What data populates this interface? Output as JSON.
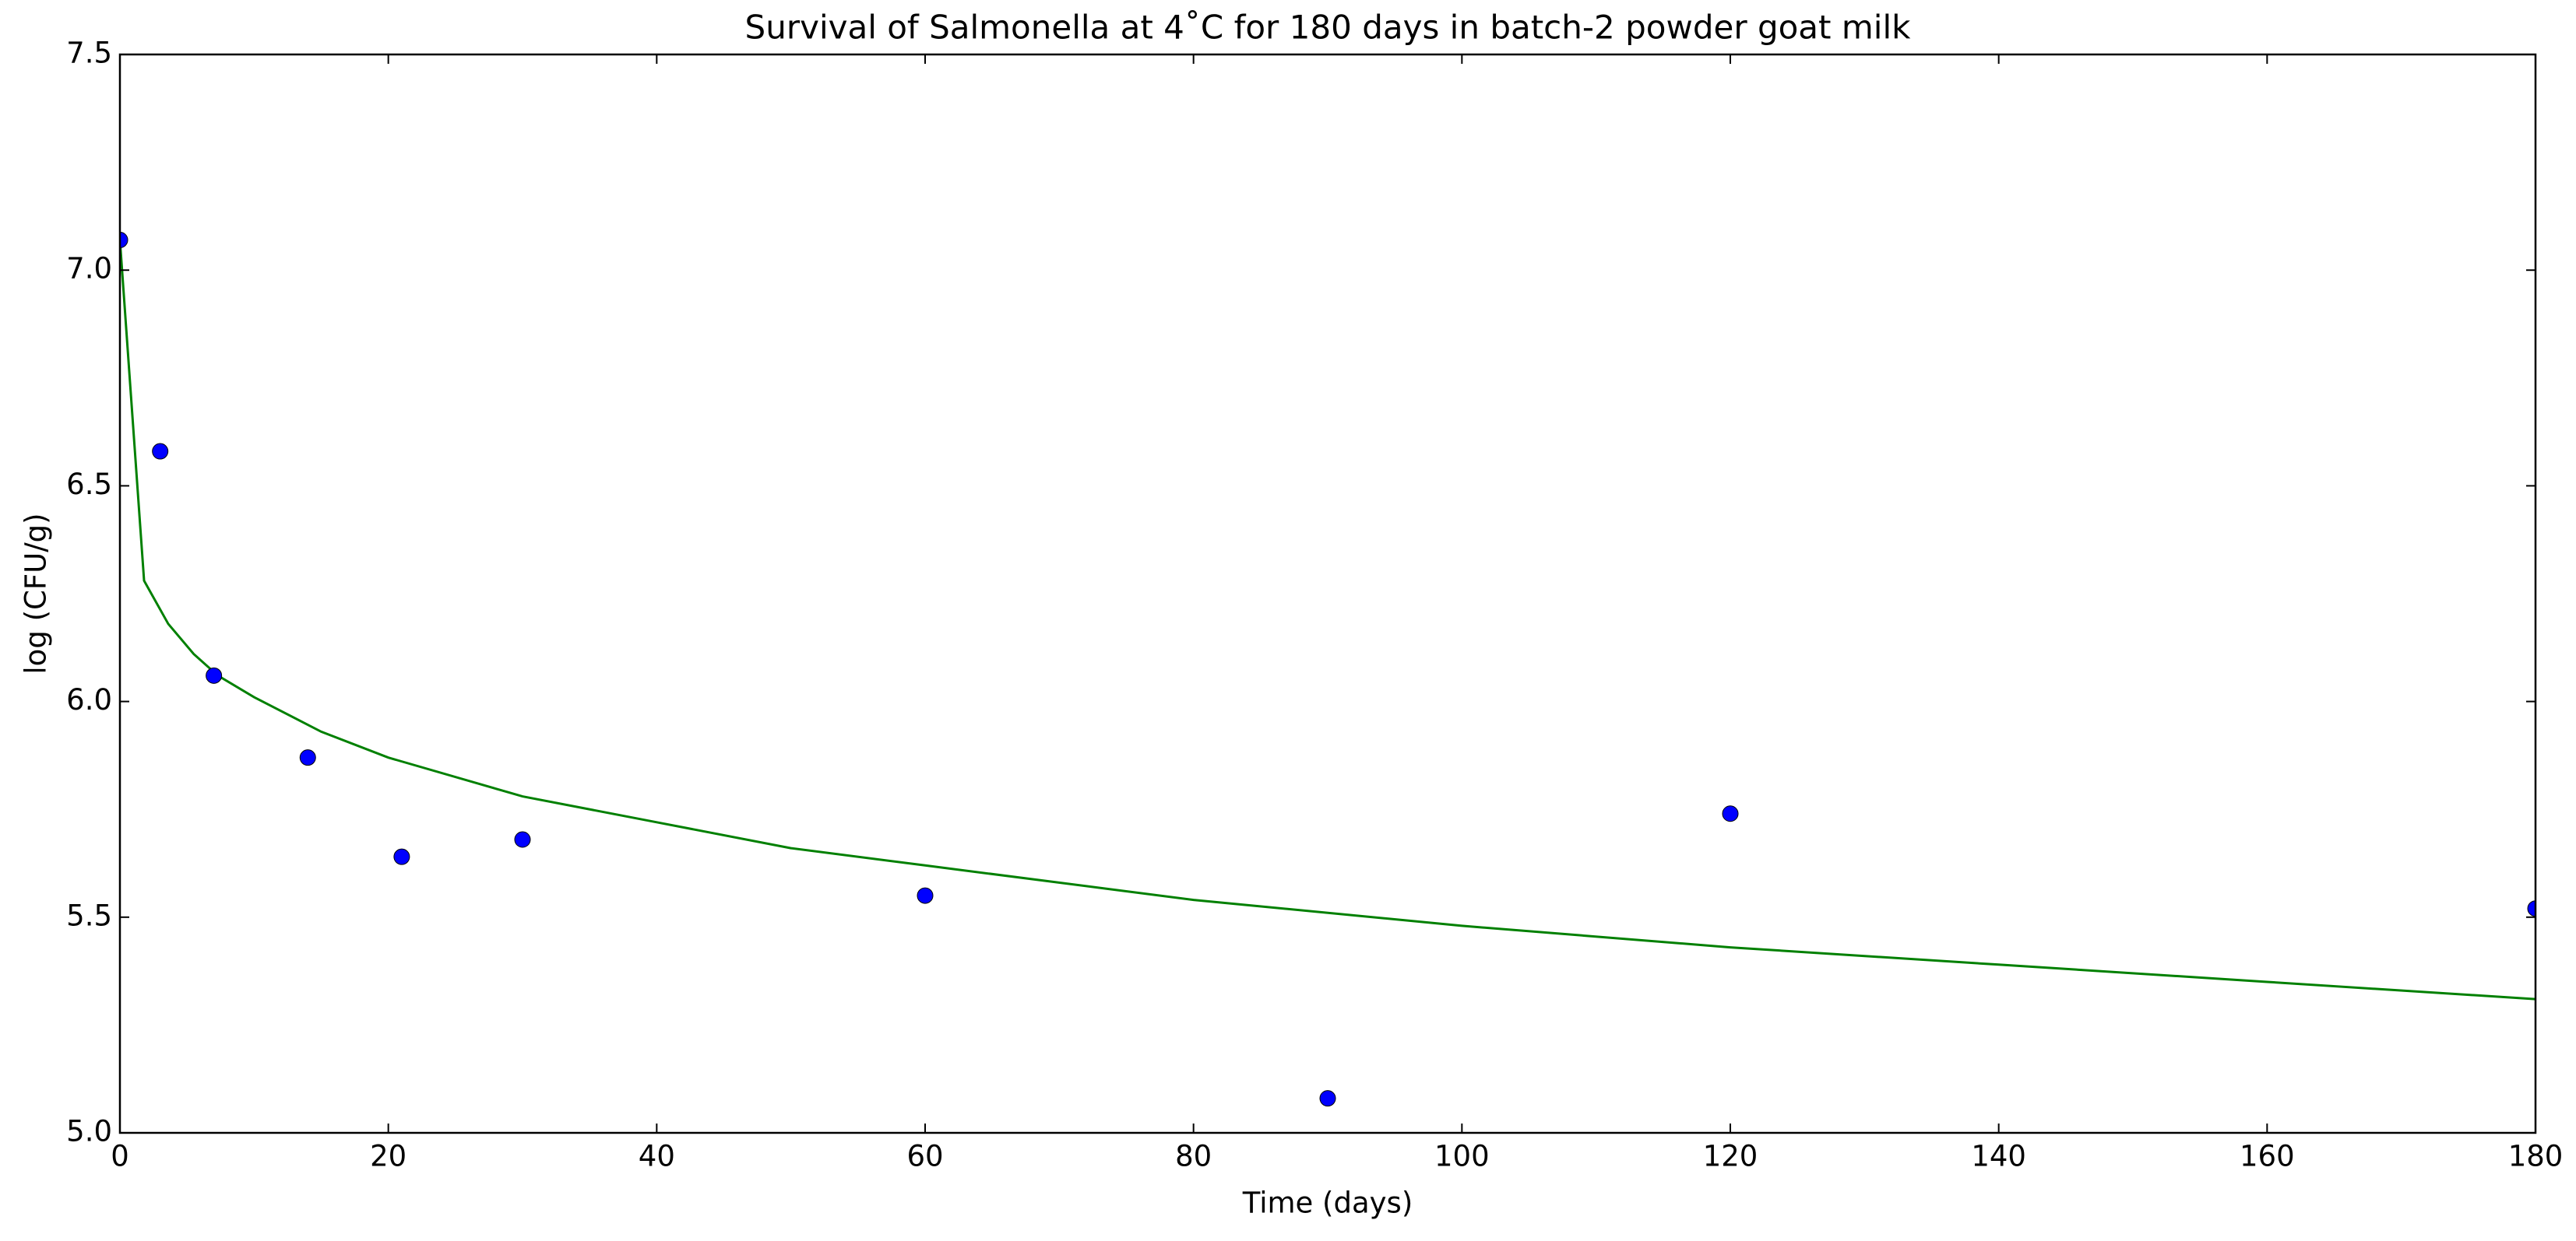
{
  "chart_data": {
    "type": "scatter",
    "title": "Survival of Salmonella at 4˚C  for 180 days in batch-2 powder goat milk",
    "xlabel": "Time (days)",
    "ylabel": "log (CFU/g)",
    "xlim": [
      0,
      180
    ],
    "xticks": [
      0,
      20,
      40,
      60,
      80,
      100,
      120,
      140,
      160,
      180
    ],
    "ylim": [
      5,
      7.5
    ],
    "yticks": [
      {
        "value": 5,
        "label": "5.0"
      },
      5.5,
      {
        "value": 6,
        "label": "6.0"
      },
      6.5,
      {
        "value": 7,
        "label": "7.0"
      },
      7.5
    ],
    "grid": false,
    "series": [
      {
        "type": "scatter",
        "color": "#0000ff",
        "x": [
          0,
          3,
          7,
          14,
          21,
          30,
          60,
          90,
          120,
          180
        ],
        "values": [
          7.07,
          6.58,
          6.06,
          5.87,
          5.64,
          5.68,
          5.55,
          5.08,
          5.74,
          5.52
        ]
      },
      {
        "type": "line",
        "color": "#008000",
        "x": [
          0,
          1.8,
          3.6,
          5.5,
          7.3,
          10,
          15,
          20,
          30,
          40,
          50,
          60,
          80,
          100,
          120,
          140,
          160,
          180
        ],
        "values": [
          7.07,
          6.28,
          6.18,
          6.11,
          6.06,
          6.01,
          5.93,
          5.87,
          5.78,
          5.72,
          5.66,
          5.62,
          5.54,
          5.48,
          5.43,
          5.39,
          5.35,
          5.31
        ]
      }
    ]
  }
}
